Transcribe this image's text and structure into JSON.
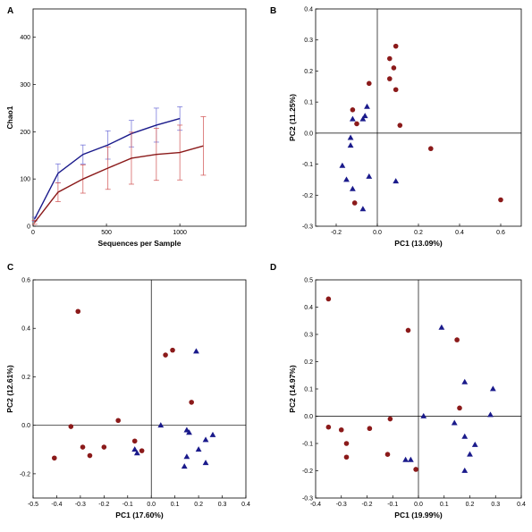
{
  "colors": {
    "red": "#8b1a1a",
    "blue": "#1a1a8b",
    "red_err": "#d05050",
    "blue_err": "#6a6ad6"
  },
  "chart_data": [
    {
      "panel": "A",
      "type": "line",
      "xlabel": "Sequences per Sample",
      "ylabel": "Chao1",
      "xlim": [
        0,
        1450
      ],
      "ylim": [
        0,
        460
      ],
      "xticks": [
        0,
        500,
        1000
      ],
      "yticks": [
        0,
        100,
        200,
        300,
        400
      ],
      "series": [
        {
          "color": "blue",
          "x": [
            10,
            170,
            340,
            510,
            670,
            840,
            1000
          ],
          "y": [
            15,
            112,
            152,
            172,
            196,
            214,
            228
          ],
          "err": [
            4,
            20,
            20,
            30,
            28,
            36,
            25
          ]
        },
        {
          "color": "red",
          "x": [
            10,
            170,
            340,
            510,
            670,
            840,
            1000,
            1160
          ],
          "y": [
            8,
            72,
            100,
            123,
            144,
            152,
            156,
            170
          ],
          "err": [
            4,
            20,
            30,
            45,
            55,
            55,
            58,
            62
          ]
        }
      ]
    },
    {
      "panel": "B",
      "type": "scatter",
      "xlabel": "PC1 (13.09%)",
      "ylabel": "PC2 (11.25%)",
      "xlim": [
        -0.3,
        0.7
      ],
      "ylim": [
        -0.3,
        0.4
      ],
      "xticks": [
        -0.2,
        0.0,
        0.2,
        0.4,
        0.6
      ],
      "xtick_labels": [
        "-0.2",
        "0.0",
        "0.2",
        "0.4",
        "0.6"
      ],
      "yticks": [
        -0.3,
        -0.2,
        -0.1,
        0.0,
        0.1,
        0.2,
        0.3,
        0.4
      ],
      "ytick_labels": [
        "-0.3",
        "-0.2",
        "-0.1",
        "0.0",
        "0.1",
        "0.2",
        "0.3",
        "0.4"
      ],
      "series": [
        {
          "marker": "circle",
          "color": "red",
          "points": [
            [
              0.09,
              0.28
            ],
            [
              0.06,
              0.24
            ],
            [
              0.08,
              0.21
            ],
            [
              0.06,
              0.175
            ],
            [
              -0.04,
              0.16
            ],
            [
              0.09,
              0.14
            ],
            [
              -0.12,
              0.075
            ],
            [
              -0.1,
              0.03
            ],
            [
              0.11,
              0.025
            ],
            [
              0.26,
              -0.05
            ],
            [
              0.6,
              -0.215
            ],
            [
              -0.11,
              -0.225
            ]
          ]
        },
        {
          "marker": "triangle",
          "color": "blue",
          "points": [
            [
              -0.05,
              0.085
            ],
            [
              -0.12,
              0.045
            ],
            [
              -0.07,
              0.045
            ],
            [
              -0.06,
              0.055
            ],
            [
              -0.13,
              -0.015
            ],
            [
              -0.13,
              -0.04
            ],
            [
              -0.17,
              -0.105
            ],
            [
              -0.04,
              -0.14
            ],
            [
              -0.15,
              -0.15
            ],
            [
              0.09,
              -0.155
            ],
            [
              -0.12,
              -0.18
            ],
            [
              -0.07,
              -0.245
            ]
          ]
        }
      ]
    },
    {
      "panel": "C",
      "type": "scatter",
      "xlabel": "PC1 (17.60%)",
      "ylabel": "PC2 (12.61%)",
      "xlim": [
        -0.5,
        0.4
      ],
      "ylim": [
        -0.3,
        0.6
      ],
      "xticks": [
        -0.5,
        -0.4,
        -0.3,
        -0.2,
        -0.1,
        0.0,
        0.1,
        0.2,
        0.3,
        0.4
      ],
      "xtick_labels": [
        "-0.5",
        "-0.4",
        "-0.3",
        "-0.2",
        "-0.1",
        "0.0",
        "0.1",
        "0.2",
        "0.3",
        "0.4"
      ],
      "yticks": [
        -0.2,
        0.0,
        0.2,
        0.4,
        0.6
      ],
      "ytick_labels": [
        "-0.2",
        "0.0",
        "0.2",
        "0.4",
        "0.6"
      ],
      "series": [
        {
          "marker": "circle",
          "color": "red",
          "points": [
            [
              -0.31,
              0.47
            ],
            [
              0.09,
              0.31
            ],
            [
              0.06,
              0.29
            ],
            [
              0.17,
              0.095
            ],
            [
              -0.14,
              0.02
            ],
            [
              -0.34,
              -0.005
            ],
            [
              -0.07,
              -0.065
            ],
            [
              -0.29,
              -0.09
            ],
            [
              -0.2,
              -0.09
            ],
            [
              -0.04,
              -0.105
            ],
            [
              -0.26,
              -0.125
            ],
            [
              -0.41,
              -0.135
            ]
          ]
        },
        {
          "marker": "triangle",
          "color": "blue",
          "points": [
            [
              0.19,
              0.305
            ],
            [
              0.04,
              0.0
            ],
            [
              0.15,
              -0.02
            ],
            [
              0.16,
              -0.03
            ],
            [
              0.26,
              -0.04
            ],
            [
              0.23,
              -0.06
            ],
            [
              -0.07,
              -0.1
            ],
            [
              0.2,
              -0.1
            ],
            [
              -0.06,
              -0.115
            ],
            [
              0.15,
              -0.13
            ],
            [
              0.23,
              -0.155
            ],
            [
              0.14,
              -0.17
            ]
          ]
        }
      ]
    },
    {
      "panel": "D",
      "type": "scatter",
      "xlabel": "PC1 (19.99%)",
      "ylabel": "PC2 (14.97%)",
      "xlim": [
        -0.4,
        0.4
      ],
      "ylim": [
        -0.3,
        0.5
      ],
      "xticks": [
        -0.4,
        -0.3,
        -0.2,
        -0.1,
        0.0,
        0.1,
        0.2,
        0.3,
        0.4
      ],
      "xtick_labels": [
        "-0.4",
        "-0.3",
        "-0.2",
        "-0.1",
        "0.0",
        "0.1",
        "0.2",
        "0.3",
        "0.4"
      ],
      "yticks": [
        -0.3,
        -0.2,
        -0.1,
        0.0,
        0.1,
        0.2,
        0.3,
        0.4,
        0.5
      ],
      "ytick_labels": [
        "-0.3",
        "-0.2",
        "-0.1",
        "0.0",
        "0.1",
        "0.2",
        "0.3",
        "0.4",
        "0.5"
      ],
      "series": [
        {
          "marker": "circle",
          "color": "red",
          "points": [
            [
              -0.35,
              0.43
            ],
            [
              -0.04,
              0.315
            ],
            [
              0.15,
              0.28
            ],
            [
              0.16,
              0.03
            ],
            [
              -0.11,
              -0.01
            ],
            [
              -0.35,
              -0.04
            ],
            [
              -0.19,
              -0.045
            ],
            [
              -0.3,
              -0.05
            ],
            [
              -0.28,
              -0.1
            ],
            [
              -0.12,
              -0.14
            ],
            [
              -0.28,
              -0.15
            ],
            [
              -0.01,
              -0.195
            ]
          ]
        },
        {
          "marker": "triangle",
          "color": "blue",
          "points": [
            [
              0.09,
              0.325
            ],
            [
              0.18,
              0.125
            ],
            [
              0.29,
              0.1
            ],
            [
              0.28,
              0.005
            ],
            [
              0.02,
              0.0
            ],
            [
              0.14,
              -0.025
            ],
            [
              0.18,
              -0.075
            ],
            [
              0.22,
              -0.105
            ],
            [
              0.2,
              -0.14
            ],
            [
              -0.05,
              -0.16
            ],
            [
              -0.03,
              -0.16
            ],
            [
              0.18,
              -0.2
            ]
          ]
        }
      ]
    }
  ]
}
